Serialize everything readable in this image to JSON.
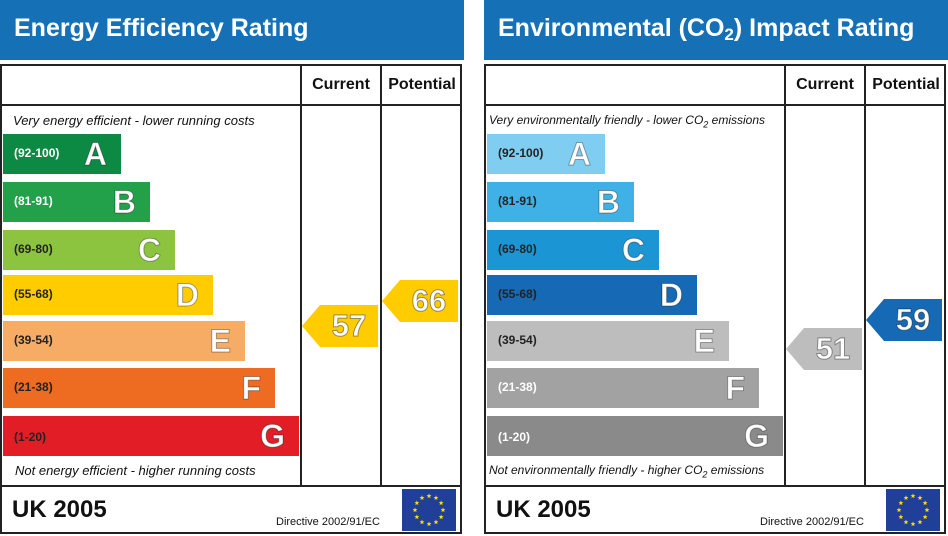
{
  "chart_data": [
    {
      "type": "bar",
      "title": "Energy Efficiency Rating",
      "top_caption": "Very energy efficient - lower running costs",
      "bottom_caption": "Not energy efficient - higher running costs",
      "columns": [
        "Current",
        "Potential"
      ],
      "bands": [
        {
          "range": "(92-100)",
          "letter": "A",
          "color": "#0c8a43",
          "text_color": "#ffffff"
        },
        {
          "range": "(81-91)",
          "letter": "B",
          "color": "#23a14a",
          "text_color": "#ffffff"
        },
        {
          "range": "(69-80)",
          "letter": "C",
          "color": "#8cc43f",
          "text_color": "#222222"
        },
        {
          "range": "(55-68)",
          "letter": "D",
          "color": "#ffcc00",
          "text_color": "#222222"
        },
        {
          "range": "(39-54)",
          "letter": "E",
          "color": "#f6ac64",
          "text_color": "#222222"
        },
        {
          "range": "(21-38)",
          "letter": "F",
          "color": "#ee6b22",
          "text_color": "#222222"
        },
        {
          "range": "(1-20)",
          "letter": "G",
          "color": "#e31d25",
          "text_color": "#222222"
        }
      ],
      "current": {
        "value": 57,
        "color": "#ffcc00"
      },
      "potential": {
        "value": 66,
        "color": "#ffcc00"
      },
      "footer": {
        "country": "UK 2005",
        "directive": "Directive 2002/91/EC"
      }
    },
    {
      "type": "bar",
      "title": "Environmental (CO",
      "title_sub": "2",
      "title_suffix": ") Impact Rating",
      "top_caption": "Very environmentally friendly - lower CO",
      "top_caption_sub": "2",
      "top_caption_suffix": " emissions",
      "bottom_caption": "Not environmentally friendly - higher CO",
      "bottom_caption_sub": "2",
      "bottom_caption_suffix": " emissions",
      "columns": [
        "Current",
        "Potential"
      ],
      "bands": [
        {
          "range": "(92-100)",
          "letter": "A",
          "color": "#7fcdf0",
          "text_color": "#222222"
        },
        {
          "range": "(81-91)",
          "letter": "B",
          "color": "#3fb1e6",
          "text_color": "#222222"
        },
        {
          "range": "(69-80)",
          "letter": "C",
          "color": "#1b95d3",
          "text_color": "#222222"
        },
        {
          "range": "(55-68)",
          "letter": "D",
          "color": "#1669b4",
          "text_color": "#222222"
        },
        {
          "range": "(39-54)",
          "letter": "E",
          "color": "#bdbdbd",
          "text_color": "#222222"
        },
        {
          "range": "(21-38)",
          "letter": "F",
          "color": "#a2a2a2",
          "text_color": "#ffffff"
        },
        {
          "range": "(1-20)",
          "letter": "G",
          "color": "#8a8a8a",
          "text_color": "#ffffff"
        }
      ],
      "current": {
        "value": 51,
        "color": "#bdbdbd"
      },
      "potential": {
        "value": 59,
        "color": "#1669b4"
      },
      "footer": {
        "country": "UK 2005",
        "directive": "Directive 2002/91/EC"
      }
    }
  ]
}
